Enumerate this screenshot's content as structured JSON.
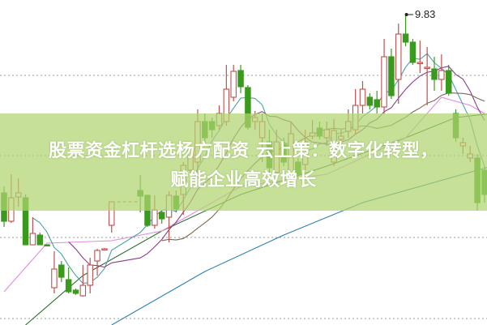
{
  "title": {
    "line1": "股票资金杠杆选杨方配资 云上策：数字化转型，",
    "line2": "赋能企业高效增长"
  },
  "chart_data": {
    "type": "candlestick",
    "high_label": "9.83",
    "grid": "horizontal dotted",
    "colors": {
      "up": "#c0504d",
      "down": "#3a9a1e",
      "ma5": "#4fa0a8",
      "ma10": "#8a3f8a",
      "ma20": "#7a6a50",
      "ma30": "#e08ae0",
      "ma60": "#2d6e2d",
      "ma120": "#2a7fb0"
    },
    "candles": [
      [
        7.63,
        7.28,
        7.71,
        7.21
      ],
      [
        7.28,
        7.57,
        7.86,
        7.26
      ],
      [
        7.58,
        7.63,
        7.81,
        7.46
      ],
      [
        7.57,
        6.99,
        7.61,
        6.99
      ],
      [
        6.99,
        7.13,
        7.33,
        6.99
      ],
      [
        7.11,
        6.99,
        7.14,
        6.99
      ],
      [
        6.99,
        6.98,
        6.99,
        6.98
      ],
      [
        6.46,
        6.69,
        6.91,
        6.39
      ],
      [
        6.74,
        6.59,
        6.79,
        6.53
      ],
      [
        6.56,
        6.41,
        6.71,
        6.39
      ],
      [
        6.43,
        6.39,
        6.45,
        6.37
      ],
      [
        6.36,
        6.49,
        6.74,
        6.35
      ],
      [
        6.49,
        6.74,
        6.83,
        6.39
      ],
      [
        6.79,
        6.92,
        6.94,
        6.61
      ],
      [
        6.93,
        6.94,
        6.95,
        6.92
      ],
      [
        7.23,
        7.52,
        7.52,
        7.14
      ],
      null,
      null,
      null,
      [
        7.66,
        7.59,
        7.85,
        7.39
      ],
      [
        7.6,
        7.23,
        7.61,
        7.21
      ],
      [
        7.23,
        7.42,
        7.6,
        7.19
      ],
      [
        7.39,
        7.31,
        7.42,
        7.25
      ],
      [
        7.33,
        7.6,
        7.65,
        7.02
      ],
      [
        7.59,
        7.43,
        7.66,
        7.39
      ],
      [
        7.61,
        7.97,
        8.01,
        7.36
      ],
      [
        7.91,
        8.16,
        8.21,
        7.86
      ],
      [
        8.01,
        8.51,
        8.66,
        7.81
      ],
      [
        8.51,
        8.31,
        8.61,
        8.21
      ],
      [
        8.51,
        8.41,
        8.56,
        8.31
      ],
      [
        8.46,
        8.61,
        8.71,
        8.41
      ],
      [
        8.51,
        8.91,
        9.21,
        8.46
      ],
      [
        8.81,
        9.13,
        9.21,
        8.76
      ],
      [
        9.14,
        8.94,
        9.21,
        8.86
      ],
      [
        8.93,
        8.44,
        8.96,
        8.41
      ],
      [
        8.51,
        8.56,
        8.64,
        8.41
      ],
      [
        8.31,
        8.51,
        8.61,
        8.01
      ],
      [
        8.26,
        7.94,
        8.41,
        7.88
      ],
      [
        7.88,
        8.26,
        8.41,
        7.86
      ],
      [
        8.23,
        8.01,
        8.31,
        7.96
      ],
      [
        7.86,
        8.36,
        8.51,
        7.71
      ],
      [
        8.01,
        7.86,
        8.06,
        7.83
      ],
      [
        7.98,
        8.26,
        8.41,
        7.91
      ],
      [
        8.33,
        8.37,
        8.53,
        8.29
      ],
      [
        8.43,
        8.33,
        8.51,
        8.29
      ],
      [
        8.31,
        8.41,
        8.51,
        8.21
      ],
      [
        8.01,
        8.4,
        8.54,
        7.96
      ],
      [
        8.29,
        8.33,
        8.41,
        8.21
      ],
      [
        8.39,
        8.51,
        8.66,
        8.31
      ],
      [
        8.41,
        8.71,
        8.91,
        8.36
      ],
      [
        8.71,
        8.91,
        9.01,
        8.61
      ],
      [
        8.81,
        8.71,
        8.86,
        8.66
      ],
      [
        8.78,
        8.69,
        8.89,
        8.61
      ],
      [
        8.69,
        9.31,
        9.53,
        8.61
      ],
      [
        9.31,
        8.83,
        9.41,
        8.79
      ],
      [
        9.03,
        9.59,
        9.72,
        8.73
      ],
      [
        9.59,
        9.49,
        9.83,
        9.44
      ],
      [
        9.49,
        9.24,
        9.53,
        9.21
      ],
      [
        9.23,
        9.24,
        9.51,
        9.11
      ],
      [
        9.17,
        9.18,
        9.43,
        8.71
      ],
      [
        9.16,
        9.03,
        9.31,
        8.89
      ],
      [
        9.03,
        9.14,
        9.34,
        8.89
      ],
      [
        9.14,
        8.86,
        9.21,
        8.83
      ],
      [
        8.61,
        8.31,
        8.66,
        8.26
      ],
      [
        8.21,
        8.25,
        8.31,
        8.11
      ],
      [
        8.06,
        8.11,
        8.21,
        8.01
      ],
      [
        8.06,
        7.51,
        8.11,
        7.41
      ],
      [
        7.91,
        7.61,
        7.96,
        7.51
      ]
    ],
    "candle_fields": [
      "open",
      "close",
      "high",
      "low"
    ],
    "gap_level": 7.52,
    "moving_averages": {
      "computed_periods": [
        5,
        10,
        20
      ],
      "ma30": [
        [
          0,
          6.41
        ],
        [
          6,
          7.01
        ],
        [
          15,
          7.04
        ],
        [
          22,
          7.16
        ],
        [
          28,
          7.46
        ],
        [
          33,
          7.71
        ],
        [
          45,
          7.86
        ],
        [
          56,
          8.31
        ],
        [
          61,
          8.81
        ],
        [
          65,
          8.71
        ],
        [
          68,
          8.56
        ]
      ],
      "ma60": [
        [
          3,
          6.0
        ],
        [
          11,
          6.61
        ],
        [
          22,
          7.16
        ],
        [
          33,
          7.61
        ],
        [
          45,
          7.96
        ],
        [
          56,
          8.31
        ],
        [
          63,
          8.56
        ],
        [
          68,
          8.61
        ]
      ],
      "ma120": [
        [
          15,
          6.0
        ],
        [
          28,
          6.66
        ],
        [
          39,
          7.11
        ],
        [
          50,
          7.51
        ],
        [
          62,
          7.81
        ],
        [
          68,
          7.96
        ]
      ]
    },
    "gridlines": [
      9.08,
      8.09,
      7.08,
      6.08
    ]
  }
}
